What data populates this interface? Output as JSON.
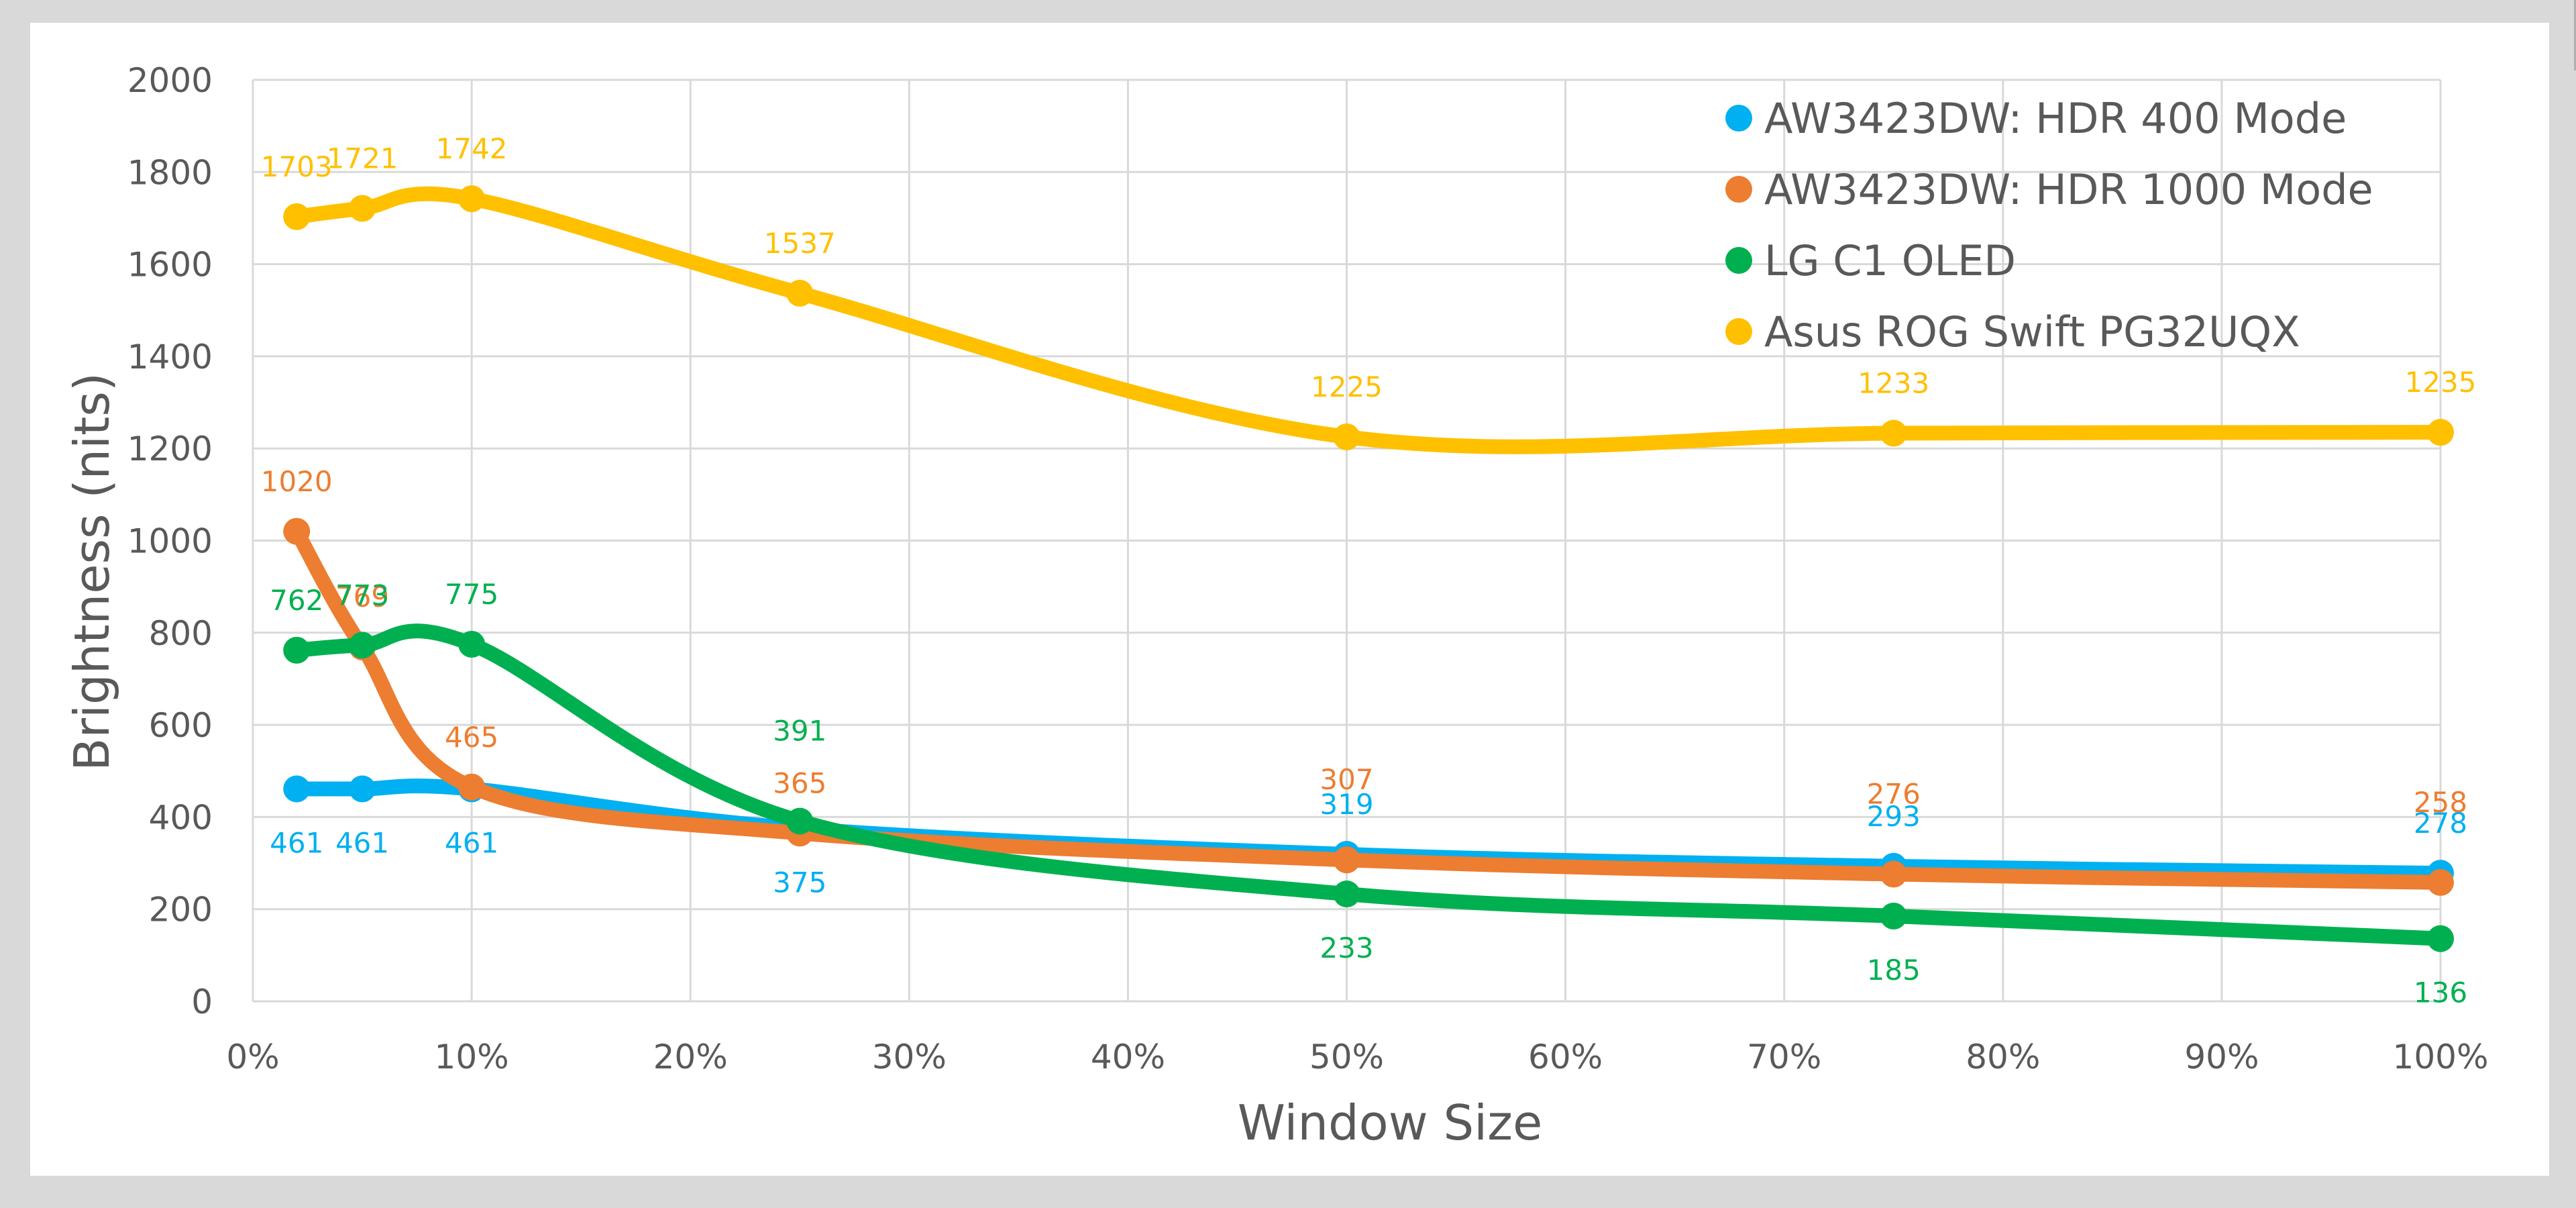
{
  "chart_data": {
    "type": "line",
    "title": "",
    "xlabel": "Window Size",
    "ylabel": "Brightness (nits)",
    "x": [
      2,
      5,
      10,
      25,
      50,
      75,
      100
    ],
    "x_unit": "%",
    "xlim": [
      0,
      100
    ],
    "ylim": [
      0,
      2000
    ],
    "x_ticks": [
      "0%",
      "10%",
      "20%",
      "30%",
      "40%",
      "50%",
      "60%",
      "70%",
      "80%",
      "90%",
      "100%"
    ],
    "x_tick_values": [
      0,
      10,
      20,
      30,
      40,
      50,
      60,
      70,
      80,
      90,
      100
    ],
    "y_ticks": [
      "0",
      "200",
      "400",
      "600",
      "800",
      "1000",
      "1200",
      "1400",
      "1600",
      "1800",
      "2000"
    ],
    "y_tick_values": [
      0,
      200,
      400,
      600,
      800,
      1000,
      1200,
      1400,
      1600,
      1800,
      2000
    ],
    "grid": true,
    "smooth": true,
    "legend_position": "top-right",
    "series": [
      {
        "name": "AW3423DW: HDR 400 Mode",
        "color": "#00B0F0",
        "values": [
          461,
          461,
          461,
          375,
          319,
          293,
          278
        ],
        "label_placement": [
          "below",
          "below",
          "below",
          "below",
          "above",
          "above",
          "above"
        ]
      },
      {
        "name": "AW3423DW: HDR 1000 Mode",
        "color": "#ED7D31",
        "values": [
          1020,
          769,
          465,
          365,
          307,
          276,
          258
        ],
        "label_placement": [
          "above",
          "above",
          "above",
          "above",
          "above-far",
          "above-far",
          "above-far"
        ]
      },
      {
        "name": "LG C1 OLED",
        "color": "#00B050",
        "values": [
          762,
          773,
          775,
          391,
          233,
          185,
          136
        ],
        "label_placement": [
          "above",
          "above",
          "above",
          "above-far",
          "below",
          "below",
          "below"
        ]
      },
      {
        "name": "Asus ROG Swift PG32UQX",
        "color": "#FFC000",
        "values": [
          1703,
          1721,
          1742,
          1537,
          1225,
          1233,
          1235
        ],
        "label_placement": [
          "above",
          "above",
          "above",
          "above",
          "above",
          "above",
          "above"
        ]
      }
    ]
  }
}
